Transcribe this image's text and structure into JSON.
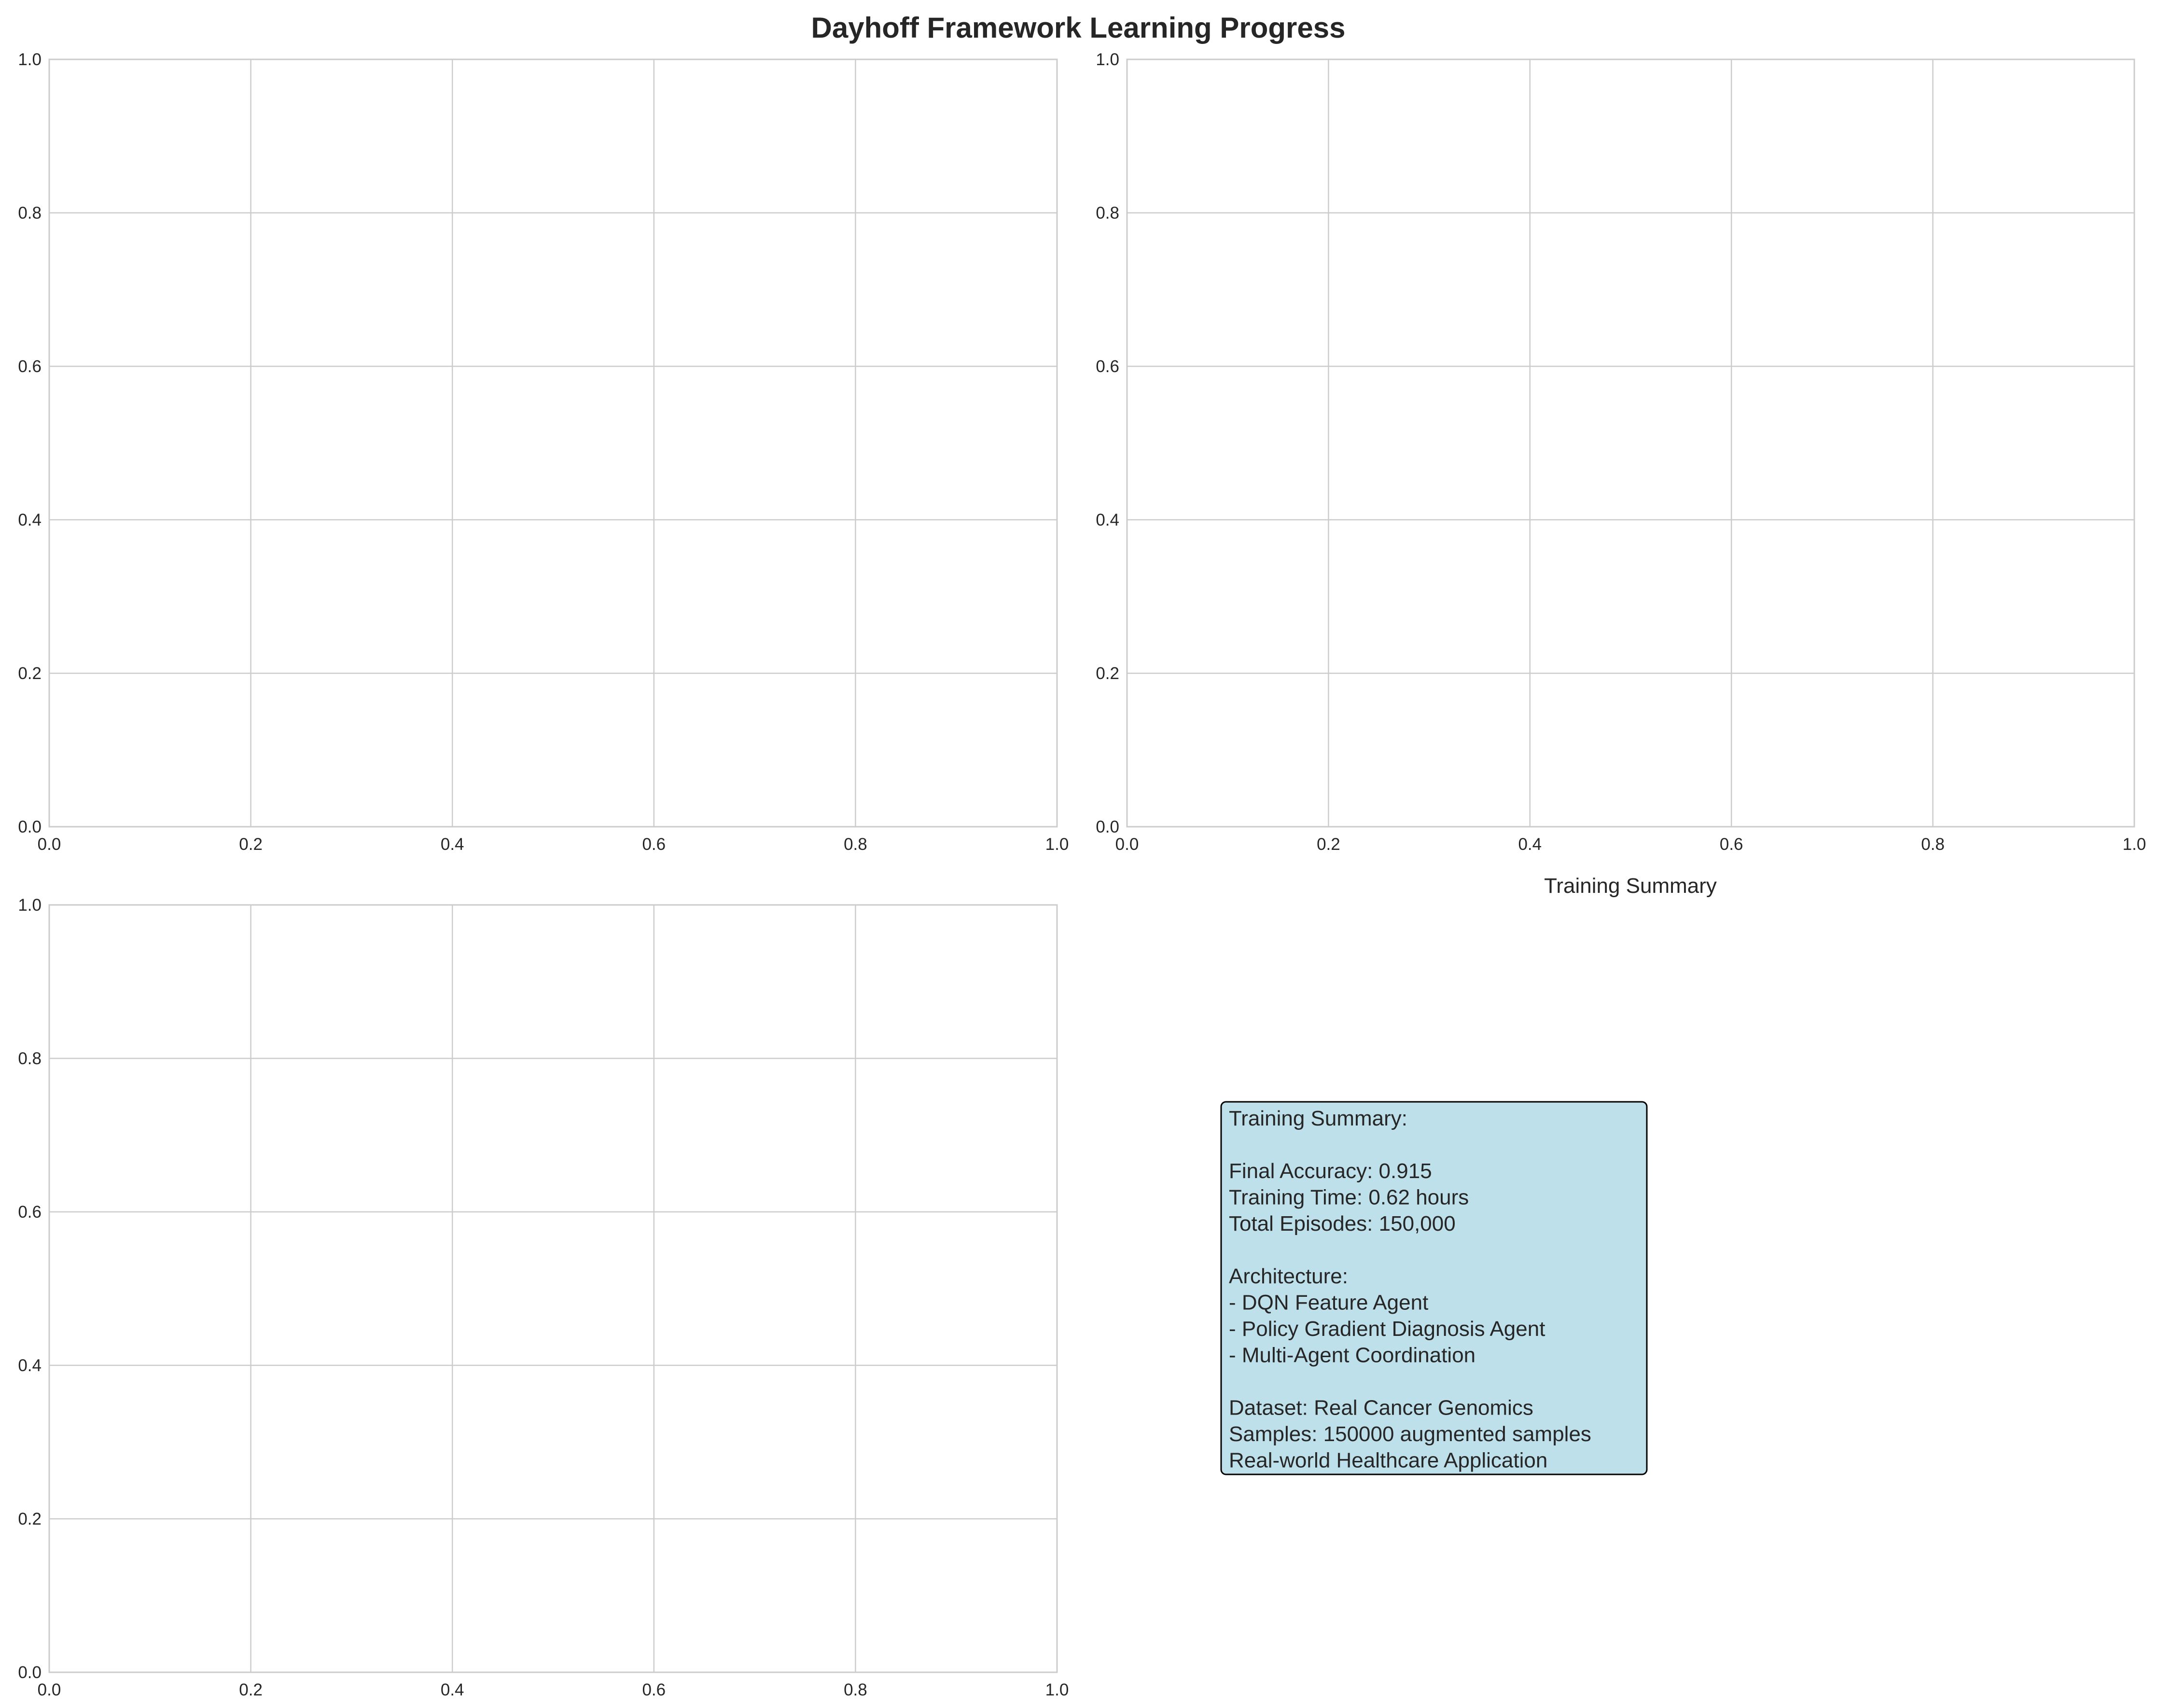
{
  "figure": {
    "suptitle": "Dayhoff Framework Learning Progress"
  },
  "chart_data": [
    {
      "type": "line",
      "title": "",
      "xlabel": "",
      "ylabel": "",
      "series": [],
      "xlim": [
        0,
        1
      ],
      "ylim": [
        0,
        1
      ],
      "xticks": [
        "0.0",
        "0.2",
        "0.4",
        "0.6",
        "0.8",
        "1.0"
      ],
      "yticks": [
        "0.0",
        "0.2",
        "0.4",
        "0.6",
        "0.8",
        "1.0"
      ],
      "grid": true
    },
    {
      "type": "line",
      "title": "",
      "xlabel": "",
      "ylabel": "",
      "series": [],
      "xlim": [
        0,
        1
      ],
      "ylim": [
        0,
        1
      ],
      "xticks": [
        "0.0",
        "0.2",
        "0.4",
        "0.6",
        "0.8",
        "1.0"
      ],
      "yticks": [
        "0.0",
        "0.2",
        "0.4",
        "0.6",
        "0.8",
        "1.0"
      ],
      "grid": true
    },
    {
      "type": "line",
      "title": "",
      "xlabel": "",
      "ylabel": "",
      "series": [],
      "xlim": [
        0,
        1
      ],
      "ylim": [
        0,
        1
      ],
      "xticks": [
        "0.0",
        "0.2",
        "0.4",
        "0.6",
        "0.8",
        "1.0"
      ],
      "yticks": [
        "0.0",
        "0.2",
        "0.4",
        "0.6",
        "0.8",
        "1.0"
      ],
      "grid": true
    }
  ],
  "summary_panel": {
    "title": "Training Summary",
    "box_color": "#add8e6",
    "lines": [
      "Training Summary:",
      "",
      "Final Accuracy: 0.915",
      "Training Time: 0.62 hours",
      "Total Episodes: 150,000",
      "",
      "Architecture:",
      "- DQN Feature Agent",
      "- Policy Gradient Diagnosis Agent",
      "- Multi-Agent Coordination",
      "",
      "Dataset: Real Cancer Genomics",
      "Samples: 150000 augmented samples",
      "Real-world Healthcare Application"
    ]
  }
}
